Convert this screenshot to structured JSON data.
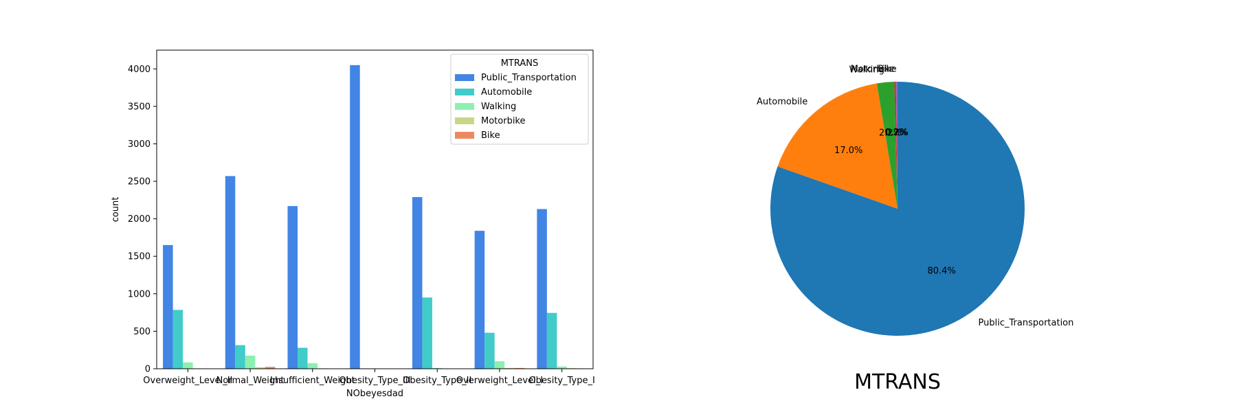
{
  "colors": {
    "Public_Transportation": "#4285e4",
    "Automobile": "#41ccc9",
    "Walking": "#8ef0b0",
    "Motorbike": "#c9d68a",
    "Bike": "#ec8a5f"
  },
  "pie_colors": [
    "#1f77b4",
    "#ff7f0e",
    "#2ca02c",
    "#d62728",
    "#9467bd"
  ],
  "chart_data": [
    {
      "type": "bar",
      "title": "",
      "xlabel": "NObeyesdad",
      "ylabel": "count",
      "ylim": [
        0,
        4250
      ],
      "yticks": [
        0,
        500,
        1000,
        1500,
        2000,
        2500,
        3000,
        3500,
        4000
      ],
      "categories": [
        "Overweight_Level_II",
        "Normal_Weight",
        "Insufficient_Weight",
        "Obesity_Type_III",
        "Obesity_Type_II",
        "Overweight_Level_I",
        "Obesity_Type_I"
      ],
      "legend_title": "MTRANS",
      "legend_position": "top-right",
      "series": [
        {
          "name": "Public_Transportation",
          "values": [
            1650,
            2570,
            2170,
            4050,
            2290,
            1840,
            2130
          ]
        },
        {
          "name": "Automobile",
          "values": [
            785,
            315,
            280,
            5,
            950,
            480,
            745
          ]
        },
        {
          "name": "Walking",
          "values": [
            85,
            175,
            75,
            2,
            10,
            100,
            30
          ]
        },
        {
          "name": "Motorbike",
          "values": [
            5,
            20,
            5,
            0,
            3,
            10,
            8
          ]
        },
        {
          "name": "Bike",
          "values": [
            3,
            25,
            3,
            0,
            2,
            10,
            5
          ]
        }
      ]
    },
    {
      "type": "pie",
      "title": "MTRANS",
      "labels": [
        "Public_Transportation",
        "Automobile",
        "Walking",
        "Motorbike",
        "Bike"
      ],
      "values": [
        80.4,
        17.0,
        2.2,
        0.2,
        0.2
      ],
      "pct_labels": [
        "80.4%",
        "17.0%",
        "2.2%",
        "0.2%",
        "0.2%"
      ]
    }
  ]
}
